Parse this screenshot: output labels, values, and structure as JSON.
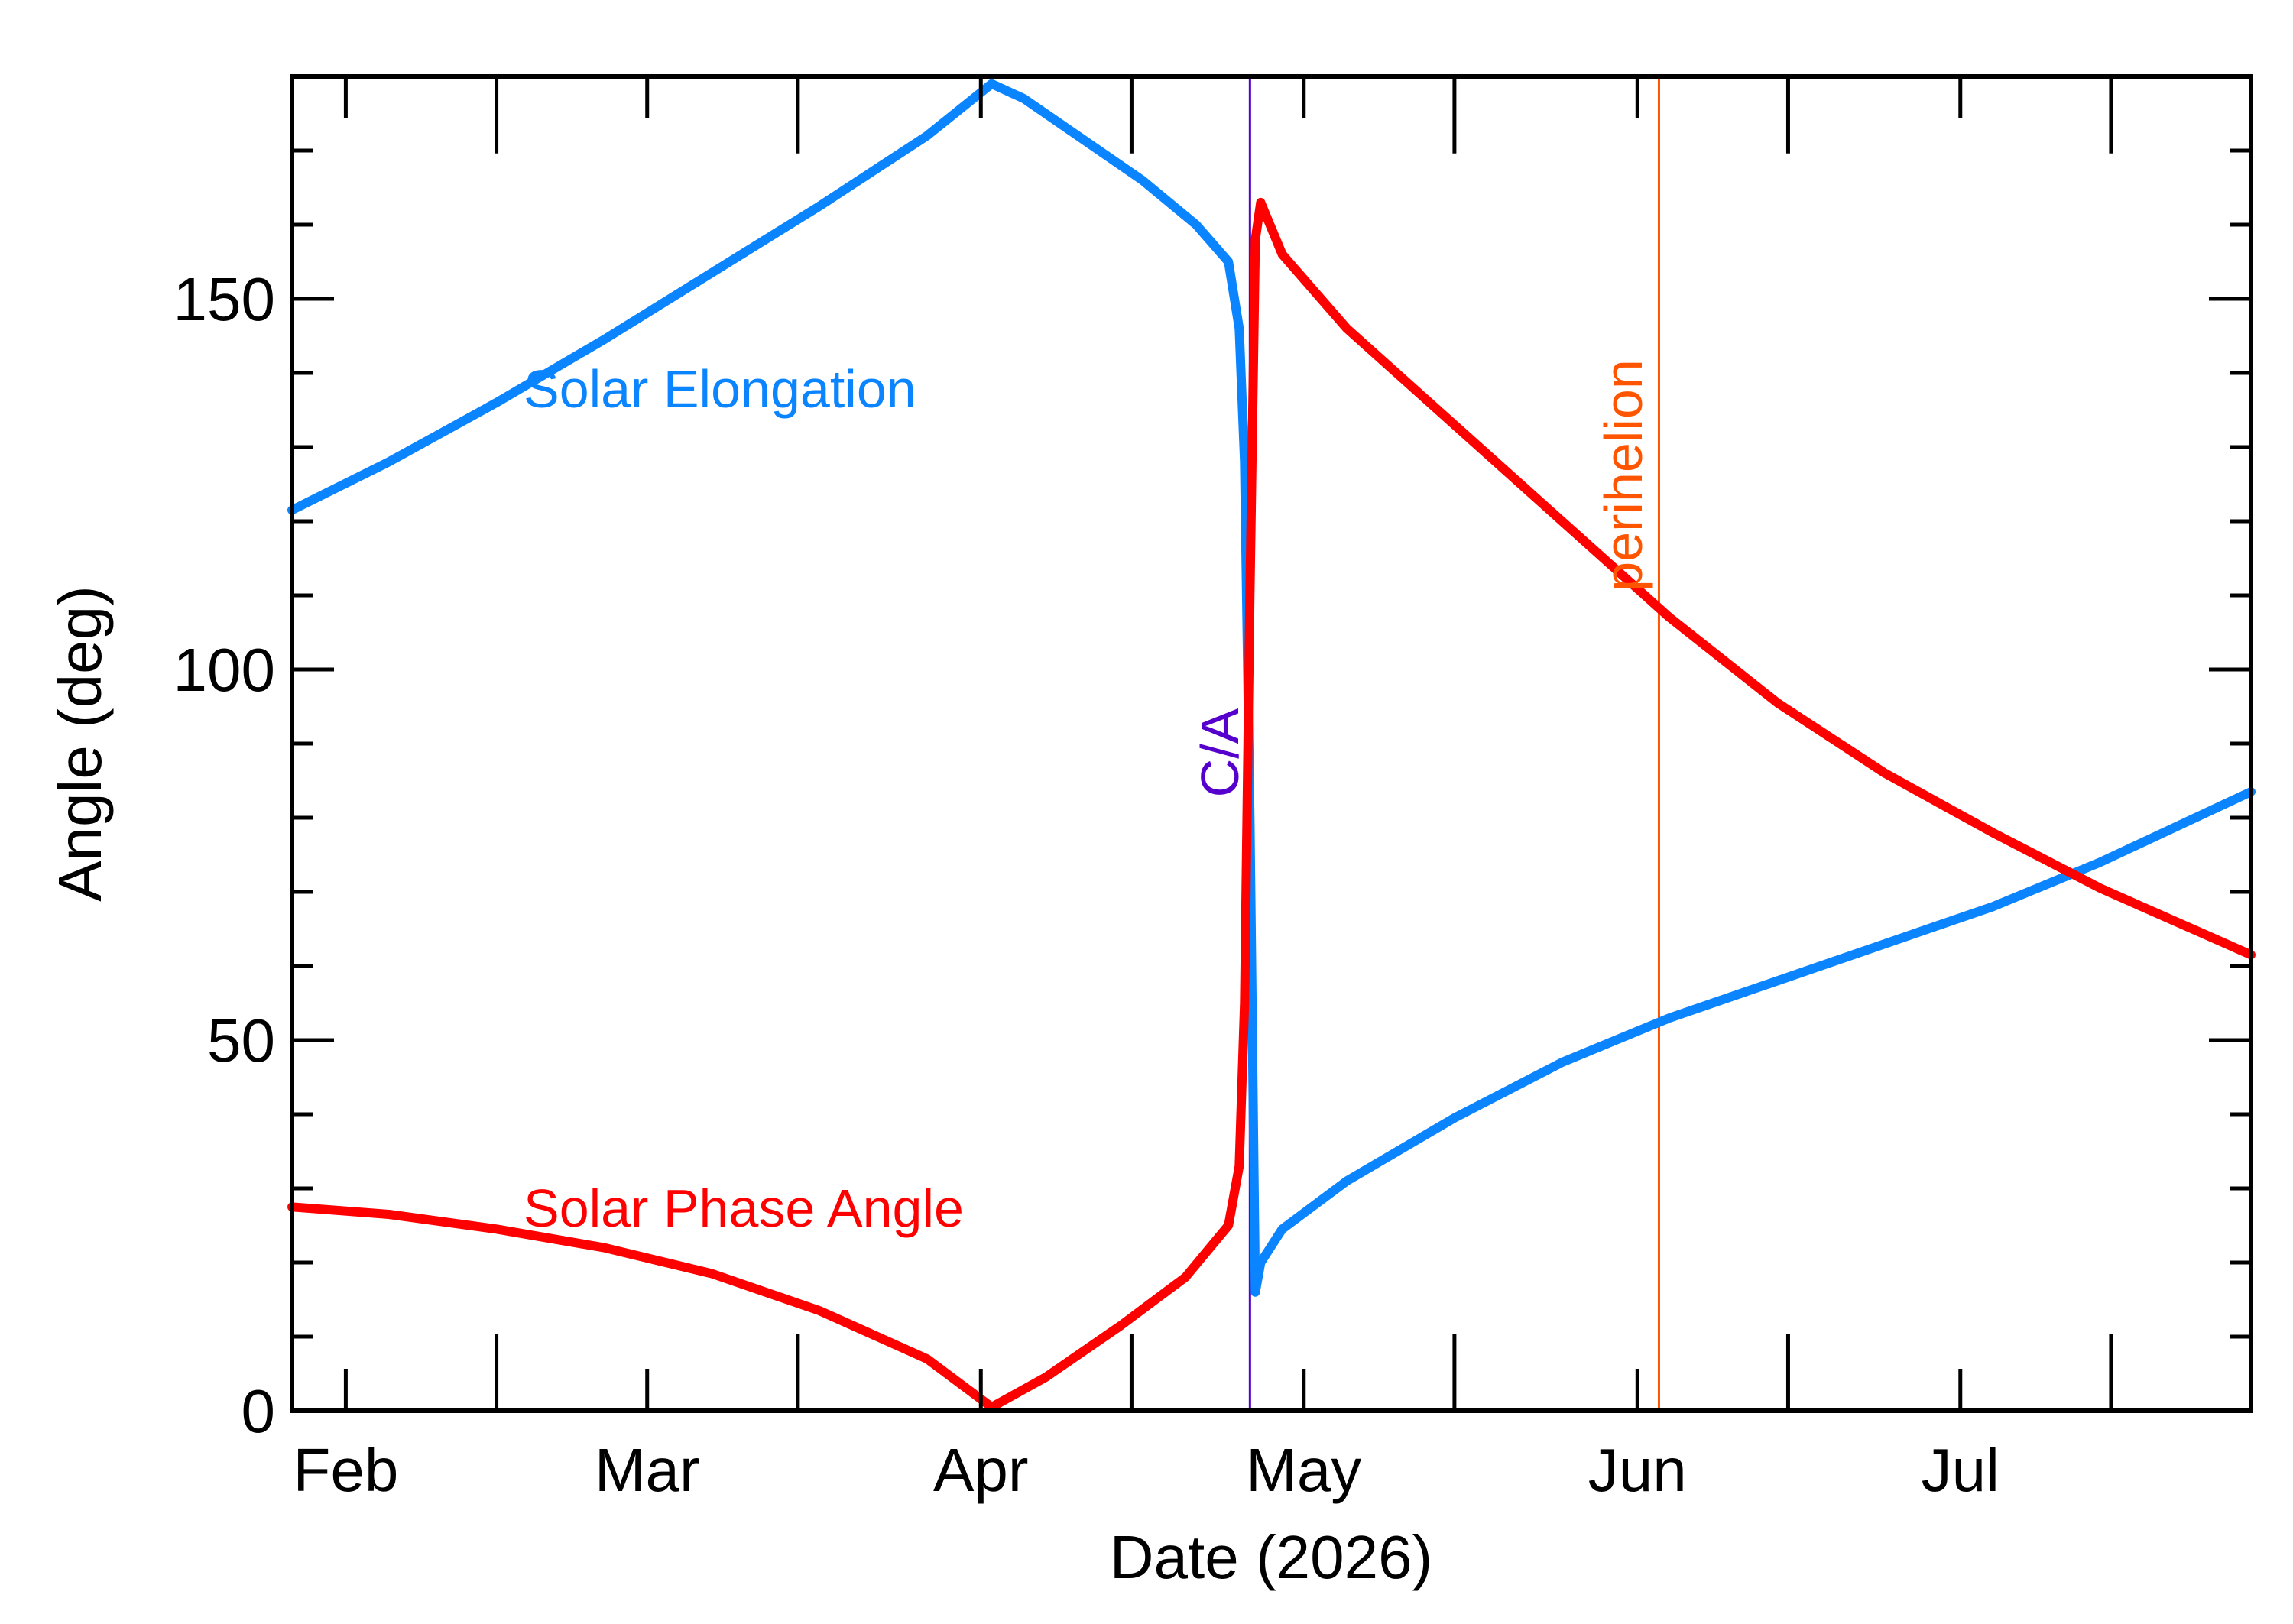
{
  "chart_data": {
    "type": "line",
    "xlabel": "Date (2026)",
    "ylabel": "Angle (deg)",
    "xlim": [
      "2026-01-27",
      "2026-07-28"
    ],
    "ylim": [
      0,
      180
    ],
    "grid": false,
    "x_ticks": [
      {
        "date": "2026-02-01",
        "label": "Feb"
      },
      {
        "date": "2026-03-01",
        "label": "Mar"
      },
      {
        "date": "2026-04-01",
        "label": "Apr"
      },
      {
        "date": "2026-05-01",
        "label": "May"
      },
      {
        "date": "2026-06-01",
        "label": "Jun"
      },
      {
        "date": "2026-07-01",
        "label": "Jul"
      }
    ],
    "y_ticks": [
      {
        "value": 0,
        "label": "0"
      },
      {
        "value": 50,
        "label": "50"
      },
      {
        "value": 100,
        "label": "100"
      },
      {
        "value": 150,
        "label": "150"
      }
    ],
    "x_minor_ticks": [
      "2026-02-15",
      "2026-03-15",
      "2026-04-15",
      "2026-05-15",
      "2026-06-15",
      "2026-07-15"
    ],
    "y_minor_ticks": [
      10,
      20,
      30,
      40,
      60,
      70,
      80,
      90,
      110,
      120,
      130,
      140,
      160,
      170
    ],
    "series": [
      {
        "name": "Solar Elongation",
        "color": "#0a84ff",
        "points": [
          [
            "2026-01-27",
            121.5
          ],
          [
            "2026-02-05",
            128
          ],
          [
            "2026-02-15",
            136
          ],
          [
            "2026-02-25",
            144.5
          ],
          [
            "2026-03-07",
            153.5
          ],
          [
            "2026-03-17",
            162.5
          ],
          [
            "2026-03-27",
            172
          ],
          [
            "2026-04-02",
            179
          ],
          [
            "2026-04-05",
            177
          ],
          [
            "2026-04-10",
            172
          ],
          [
            "2026-04-16",
            166
          ],
          [
            "2026-04-21",
            160
          ],
          [
            "2026-04-24",
            155
          ],
          [
            "2026-04-25",
            146
          ],
          [
            "2026-04-25 12:00",
            128
          ],
          [
            "2026-04-26",
            80
          ],
          [
            "2026-04-26 12:00",
            16
          ],
          [
            "2026-04-27",
            20
          ],
          [
            "2026-04-29",
            24.5
          ],
          [
            "2026-05-05",
            31
          ],
          [
            "2026-05-15",
            39.5
          ],
          [
            "2026-05-25",
            47
          ],
          [
            "2026-06-04",
            53
          ],
          [
            "2026-06-14",
            58
          ],
          [
            "2026-06-24",
            63
          ],
          [
            "2026-07-04",
            68
          ],
          [
            "2026-07-14",
            74
          ],
          [
            "2026-07-28",
            83.5
          ]
        ]
      },
      {
        "name": "Solar Phase Angle",
        "color": "#ff0000",
        "points": [
          [
            "2026-01-27",
            27.5
          ],
          [
            "2026-02-05",
            26.5
          ],
          [
            "2026-02-15",
            24.5
          ],
          [
            "2026-02-25",
            22
          ],
          [
            "2026-03-07",
            18.5
          ],
          [
            "2026-03-17",
            13.5
          ],
          [
            "2026-03-27",
            7
          ],
          [
            "2026-04-02",
            0.5
          ],
          [
            "2026-04-07",
            4.5
          ],
          [
            "2026-04-14",
            11.5
          ],
          [
            "2026-04-20",
            18
          ],
          [
            "2026-04-24",
            25
          ],
          [
            "2026-04-25",
            33
          ],
          [
            "2026-04-25 12:00",
            55
          ],
          [
            "2026-04-26",
            110
          ],
          [
            "2026-04-26 12:00",
            158
          ],
          [
            "2026-04-27",
            163
          ],
          [
            "2026-04-29",
            156
          ],
          [
            "2026-05-05",
            146
          ],
          [
            "2026-05-15",
            133
          ],
          [
            "2026-05-25",
            120
          ],
          [
            "2026-06-04",
            107
          ],
          [
            "2026-06-14",
            95.5
          ],
          [
            "2026-06-24",
            86
          ],
          [
            "2026-07-04",
            78
          ],
          [
            "2026-07-14",
            70.5
          ],
          [
            "2026-07-28",
            61.5
          ]
        ]
      }
    ],
    "markers": [
      {
        "label": "C/A",
        "date": "2026-04-26",
        "color": "#5500cc"
      },
      {
        "label": "perihelion",
        "date": "2026-06-03",
        "color": "#ff5500"
      }
    ],
    "annotations": [
      {
        "text": "Solar Elongation",
        "color": "#0a84ff"
      },
      {
        "text": "Solar Phase Angle",
        "color": "#ff0000"
      }
    ]
  }
}
